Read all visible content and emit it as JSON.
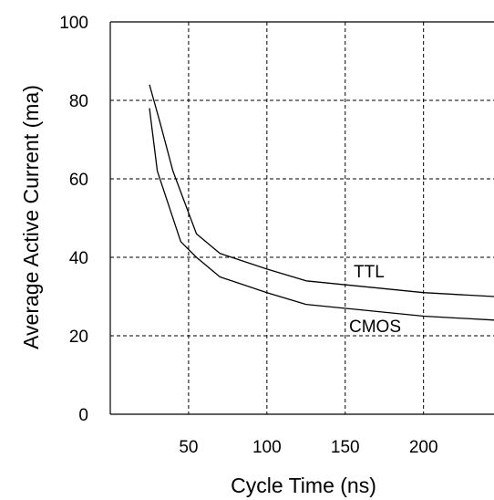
{
  "chart_data": {
    "type": "line",
    "title": "",
    "xlabel": "Cycle Time (ns)",
    "ylabel": "Average Active Current (ma)",
    "xlim": [
      0,
      245
    ],
    "ylim": [
      0,
      100
    ],
    "x_ticks": [
      50,
      100,
      150,
      200
    ],
    "y_ticks": [
      0,
      20,
      40,
      60,
      80,
      100
    ],
    "grid": true,
    "series": [
      {
        "name": "TTL",
        "x": [
          25,
          32,
          40,
          55,
          70,
          100,
          125,
          200,
          245
        ],
        "y": [
          84,
          74,
          62,
          46,
          41,
          37,
          34,
          31,
          30
        ]
      },
      {
        "name": "CMOS",
        "x": [
          25,
          30,
          45,
          55,
          70,
          100,
          125,
          200,
          245
        ],
        "y": [
          78,
          62,
          44,
          40,
          35,
          31,
          28,
          25,
          24
        ]
      }
    ]
  }
}
